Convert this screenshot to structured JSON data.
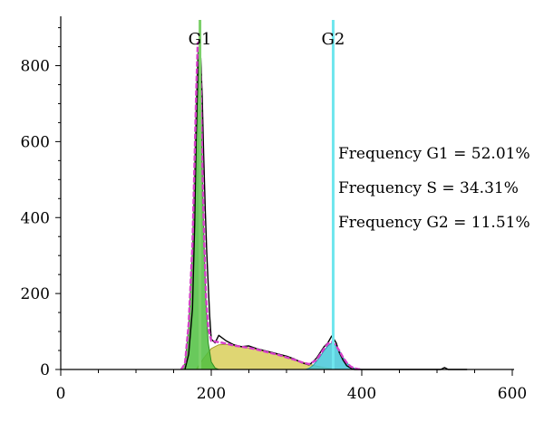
{
  "chart_data": {
    "type": "area",
    "title": "",
    "xlabel": "",
    "ylabel": "",
    "xlim": [
      0,
      600
    ],
    "ylim": [
      0,
      930
    ],
    "xticks": [
      0,
      200,
      400,
      600
    ],
    "yticks": [
      0,
      200,
      400,
      600,
      800
    ],
    "grid": false,
    "histogram": {
      "x": [
        165,
        170,
        175,
        178,
        180,
        182,
        184,
        186,
        188,
        190,
        192,
        194,
        196,
        198,
        200,
        205,
        210,
        220,
        230,
        240,
        250,
        260,
        270,
        280,
        290,
        300,
        310,
        320,
        330,
        335,
        340,
        345,
        350,
        355,
        360,
        363,
        366,
        370,
        375,
        380,
        385,
        390,
        395,
        400,
        420,
        450,
        480,
        505,
        510,
        515,
        540
      ],
      "y": [
        0,
        40,
        160,
        380,
        610,
        770,
        840,
        820,
        720,
        560,
        420,
        310,
        220,
        140,
        80,
        70,
        90,
        75,
        65,
        60,
        62,
        55,
        50,
        45,
        40,
        35,
        28,
        18,
        12,
        20,
        30,
        45,
        60,
        70,
        88,
        80,
        70,
        45,
        25,
        10,
        4,
        0,
        0,
        0,
        0,
        0,
        0,
        0,
        5,
        0,
        0
      ]
    },
    "fit": {
      "x": [
        160,
        165,
        170,
        175,
        178,
        180,
        182,
        184,
        186,
        188,
        190,
        193,
        196,
        200,
        210,
        220,
        230,
        240,
        250,
        260,
        270,
        280,
        290,
        300,
        310,
        320,
        330,
        340,
        345,
        350,
        355,
        360,
        365,
        370,
        375,
        380,
        385,
        390,
        395,
        400
      ],
      "y": [
        0,
        15,
        120,
        330,
        560,
        730,
        860,
        860,
        760,
        560,
        380,
        190,
        110,
        75,
        72,
        68,
        63,
        60,
        57,
        53,
        48,
        43,
        38,
        32,
        26,
        19,
        14,
        25,
        40,
        55,
        68,
        72,
        65,
        50,
        32,
        18,
        8,
        3,
        1,
        0
      ]
    },
    "g1_peak": {
      "x": [
        160,
        165,
        170,
        175,
        178,
        180,
        182,
        184,
        186,
        188,
        190,
        193,
        196,
        200,
        205,
        210
      ],
      "y": [
        0,
        15,
        110,
        320,
        540,
        710,
        830,
        850,
        740,
        540,
        360,
        170,
        70,
        20,
        4,
        0
      ]
    },
    "s_phase": {
      "x": [
        180,
        190,
        200,
        210,
        220,
        230,
        240,
        250,
        260,
        270,
        280,
        290,
        300,
        310,
        320,
        330,
        340,
        350,
        360,
        370,
        380
      ],
      "y": [
        0,
        30,
        55,
        65,
        66,
        63,
        60,
        57,
        53,
        48,
        43,
        38,
        32,
        26,
        20,
        14,
        9,
        5,
        2,
        1,
        0
      ]
    },
    "g2_peak": {
      "x": [
        325,
        330,
        335,
        340,
        345,
        350,
        355,
        360,
        365,
        370,
        375,
        380,
        385,
        390,
        395,
        400
      ],
      "y": [
        0,
        3,
        10,
        22,
        35,
        50,
        62,
        70,
        65,
        50,
        32,
        18,
        8,
        3,
        1,
        0
      ]
    },
    "markers": [
      {
        "label": "G1",
        "x": 185
      },
      {
        "label": "G2",
        "x": 362
      }
    ],
    "annotations": [
      "Frequency G1 = 52.01%",
      "Frequency S = 34.31%",
      "Frequency G2 = 11.51%"
    ],
    "colors": {
      "g1_fill": "#4fbf3f",
      "s_fill": "#d9cf5a",
      "g2_fill": "#45c8d8",
      "fit_line": "#d63fc9",
      "histogram_line": "#000000",
      "g1_marker": "#7cd06a",
      "g2_marker": "#6fe6ee"
    }
  }
}
